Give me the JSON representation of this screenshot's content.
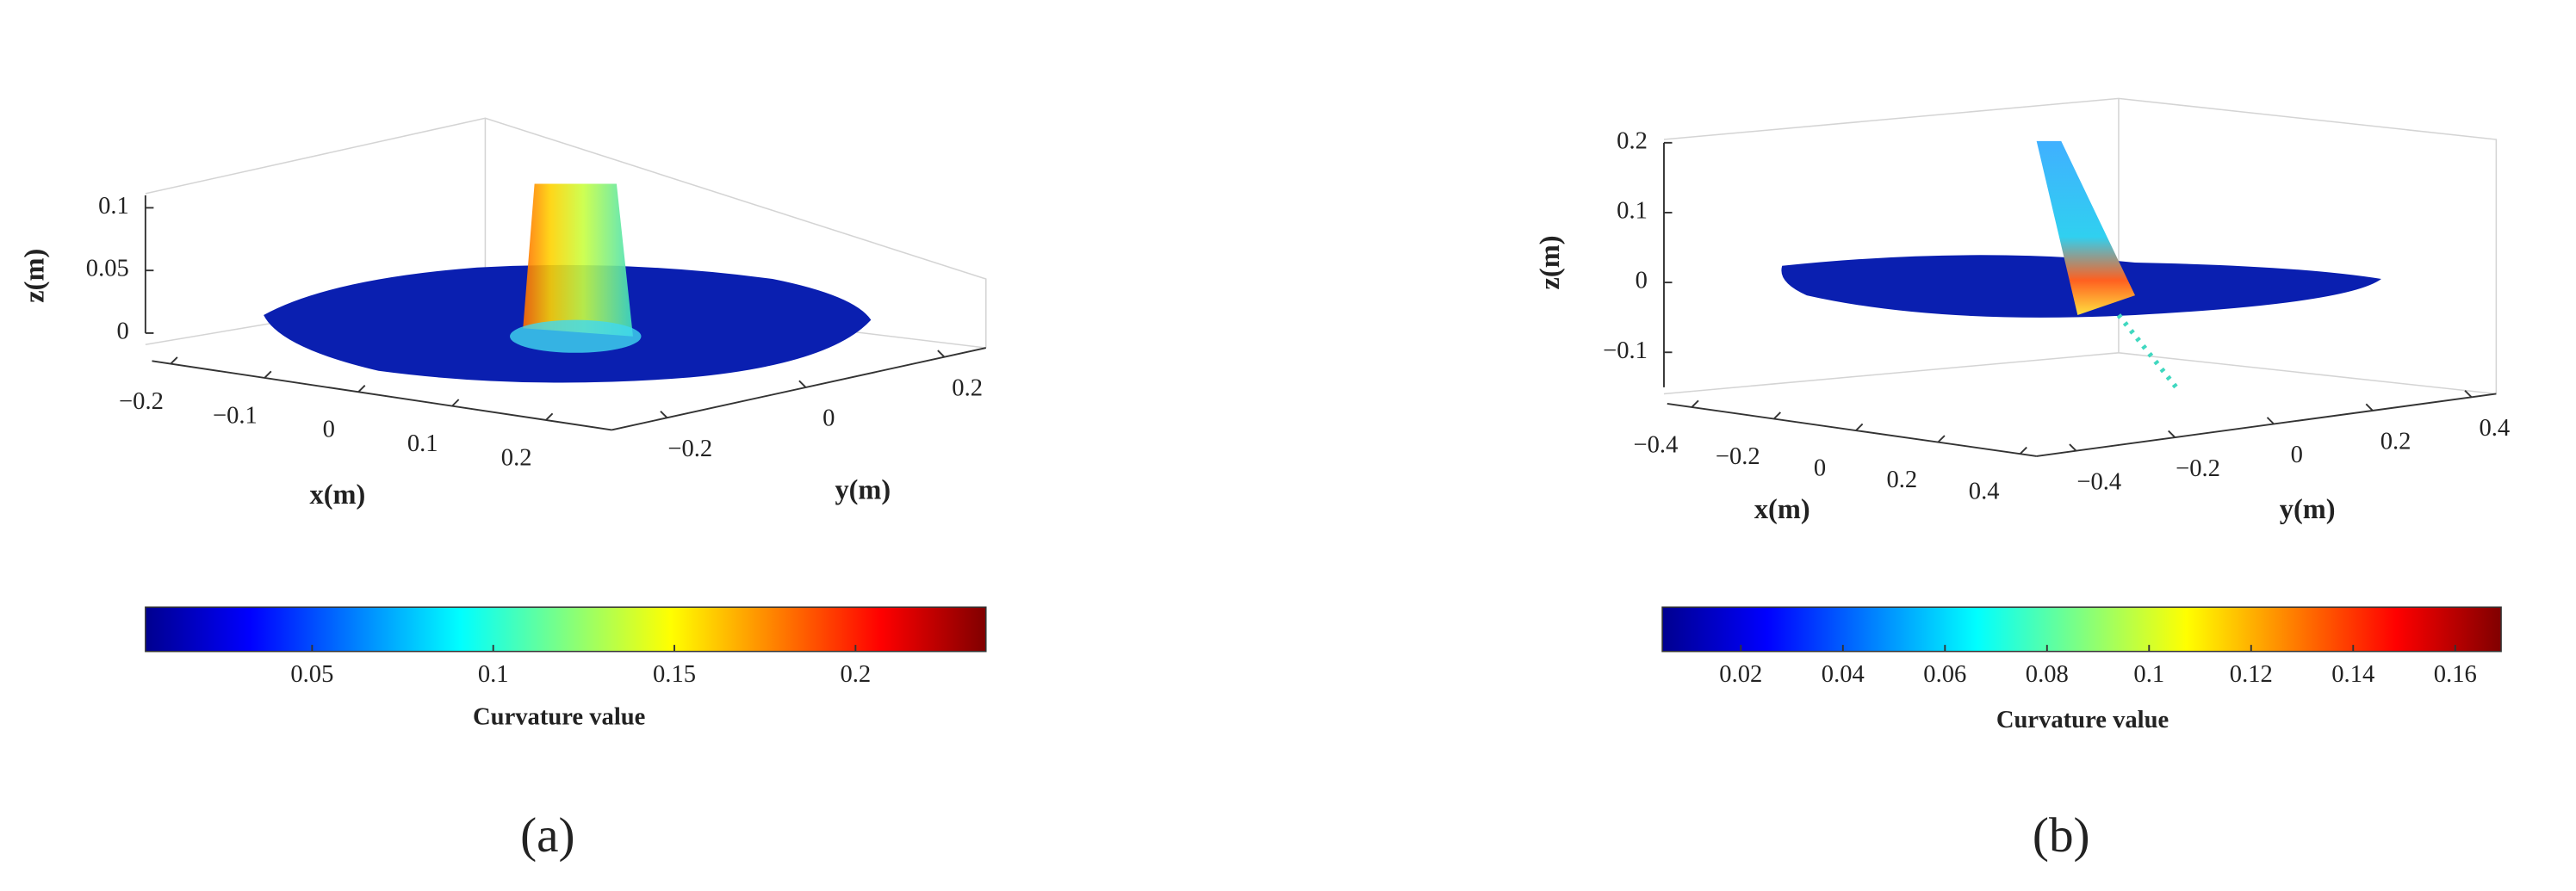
{
  "chart_data": [
    {
      "type": "scatter3d",
      "panel": "(a)",
      "colormap": "jet",
      "xlabel": "x(m)",
      "ylabel": "y(m)",
      "zlabel": "z(m)",
      "xlim": [
        -0.22,
        0.27
      ],
      "xticks": [
        {
          "value": -0.2,
          "label": "−0.2"
        },
        {
          "value": -0.1,
          "label": "−0.1"
        },
        0,
        0.1,
        0.2
      ],
      "ylim": [
        -0.28,
        0.26
      ],
      "yticks": [
        {
          "value": -0.2,
          "label": "−0.2"
        },
        0,
        0.2
      ],
      "zlim": [
        0,
        0.11
      ],
      "zticks": [
        0,
        0.05,
        0.1
      ],
      "colorbar": {
        "label": "Curvature value",
        "lim": [
          0.004,
          0.236
        ],
        "ticks": [
          0.05,
          0.1,
          0.15,
          0.2
        ]
      }
    },
    {
      "type": "scatter3d",
      "panel": "(b)",
      "colormap": "jet",
      "xlabel": "x(m)",
      "ylabel": "y(m)",
      "zlabel": "z(m)",
      "xlim": [
        -0.46,
        0.44
      ],
      "xticks": [
        {
          "value": -0.4,
          "label": "−0.4"
        },
        {
          "value": -0.2,
          "label": "−0.2"
        },
        0,
        0.2,
        0.4
      ],
      "ylim": [
        -0.48,
        0.45
      ],
      "yticks": [
        {
          "value": -0.4,
          "label": "−0.4"
        },
        {
          "value": -0.2,
          "label": "−0.2"
        },
        0,
        0.2,
        0.4
      ],
      "zlim": [
        -0.15,
        0.2
      ],
      "zticks": [
        {
          "value": -0.1,
          "label": "−0.1"
        },
        0,
        0.1,
        0.2
      ],
      "colorbar": {
        "label": "Curvature value",
        "lim": [
          0.0046,
          0.169
        ],
        "ticks": [
          0.02,
          0.04,
          0.06,
          0.08,
          0.1,
          0.12,
          0.14,
          0.16
        ]
      }
    }
  ]
}
